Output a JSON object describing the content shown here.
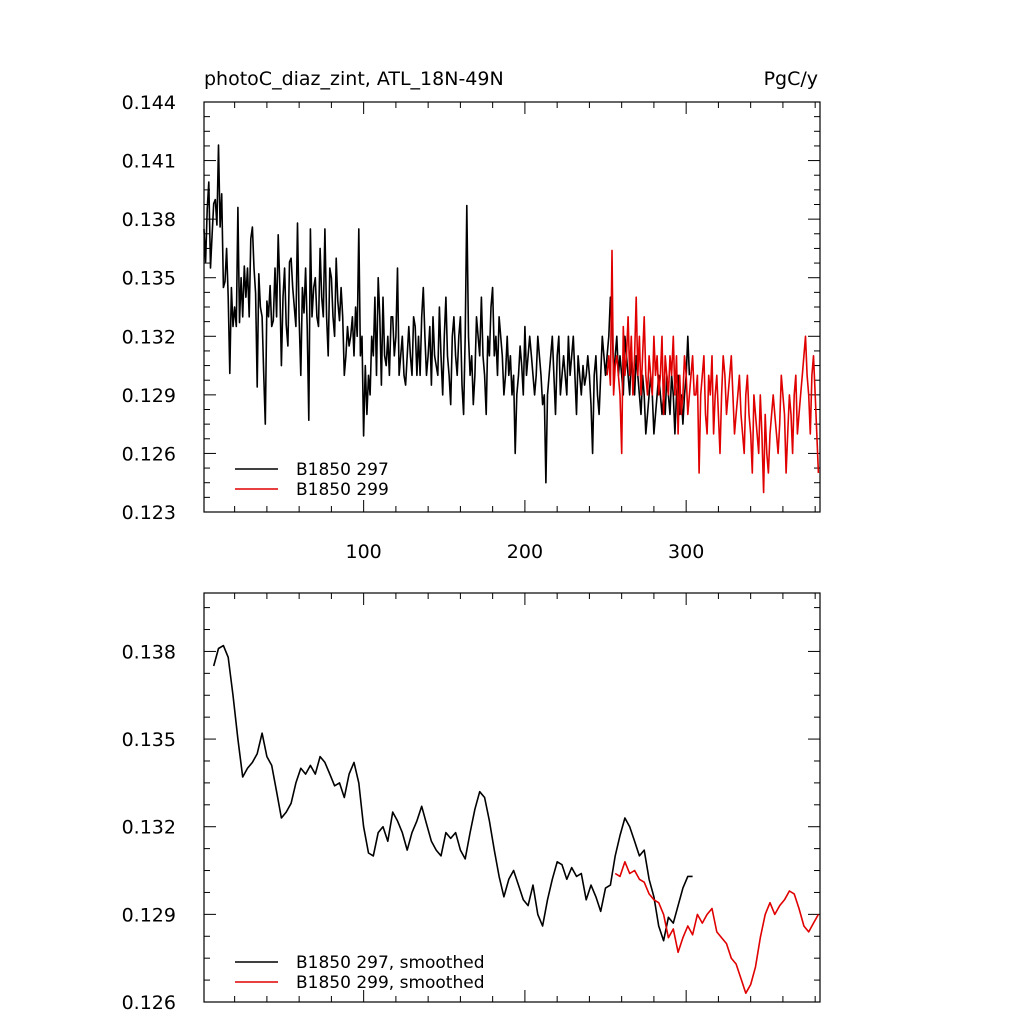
{
  "chart_data": [
    {
      "type": "line",
      "title": "photoC_diaz_zint, ATL_18N-49N",
      "units": "PgC/y",
      "xlabel": "",
      "ylabel": "",
      "xlim": [
        1,
        383
      ],
      "ylim": [
        0.123,
        0.144
      ],
      "x_ticks": [
        100,
        200,
        300
      ],
      "x_tick_labels": [
        "100",
        "200",
        "300"
      ],
      "y_ticks": [
        0.123,
        0.126,
        0.129,
        0.132,
        0.135,
        0.138,
        0.141,
        0.144
      ],
      "y_tick_labels": [
        "0.123",
        "0.126",
        "0.129",
        "0.132",
        "0.135",
        "0.138",
        "0.141",
        "0.144"
      ],
      "legend": "bottom-left",
      "series": [
        {
          "name": "B1850 297",
          "color": "#000000",
          "x_start": 1,
          "values": [
            0.1375,
            0.1358,
            0.1385,
            0.1399,
            0.1355,
            0.1372,
            0.1388,
            0.139,
            0.1377,
            0.1418,
            0.1376,
            0.1393,
            0.1345,
            0.1348,
            0.1365,
            0.134,
            0.1301,
            0.1345,
            0.1325,
            0.1335,
            0.1325,
            0.1386,
            0.1327,
            0.135,
            0.133,
            0.1356,
            0.134,
            0.1355,
            0.133,
            0.137,
            0.1376,
            0.1355,
            0.1342,
            0.1294,
            0.1352,
            0.1335,
            0.133,
            0.1301,
            0.1275,
            0.1338,
            0.133,
            0.1346,
            0.1325,
            0.1328,
            0.1355,
            0.133,
            0.1372,
            0.1346,
            0.1305,
            0.134,
            0.1355,
            0.1326,
            0.1315,
            0.1358,
            0.136,
            0.1345,
            0.1335,
            0.1325,
            0.1378,
            0.133,
            0.13,
            0.1345,
            0.1332,
            0.1355,
            0.1325,
            0.1277,
            0.1375,
            0.133,
            0.1345,
            0.135,
            0.133,
            0.1325,
            0.1365,
            0.134,
            0.133,
            0.1375,
            0.133,
            0.131,
            0.1355,
            0.135,
            0.133,
            0.132,
            0.136,
            0.1338,
            0.1328,
            0.1345,
            0.133,
            0.13,
            0.131,
            0.1325,
            0.1315,
            0.132,
            0.133,
            0.131,
            0.1335,
            0.132,
            0.1375,
            0.131,
            0.132,
            0.1269,
            0.1305,
            0.128,
            0.13,
            0.129,
            0.132,
            0.131,
            0.134,
            0.13,
            0.135,
            0.133,
            0.1295,
            0.134,
            0.131,
            0.1305,
            0.132,
            0.13,
            0.133,
            0.133,
            0.131,
            0.132,
            0.1355,
            0.13,
            0.131,
            0.132,
            0.13,
            0.1295,
            0.131,
            0.1325,
            0.131,
            0.13,
            0.133,
            0.1325,
            0.13,
            0.132,
            0.13,
            0.133,
            0.1345,
            0.132,
            0.13,
            0.131,
            0.1325,
            0.1295,
            0.133,
            0.131,
            0.1305,
            0.13,
            0.1335,
            0.131,
            0.129,
            0.132,
            0.134,
            0.131,
            0.13,
            0.1285,
            0.132,
            0.133,
            0.131,
            0.13,
            0.132,
            0.133,
            0.1295,
            0.128,
            0.132,
            0.1387,
            0.132,
            0.13,
            0.131,
            0.1285,
            0.13,
            0.133,
            0.132,
            0.131,
            0.134,
            0.131,
            0.13,
            0.128,
            0.132,
            0.131,
            0.1335,
            0.1345,
            0.131,
            0.132,
            0.13,
            0.133,
            0.132,
            0.131,
            0.129,
            0.13,
            0.132,
            0.13,
            0.131,
            0.129,
            0.13,
            0.126,
            0.129,
            0.13,
            0.1315,
            0.1305,
            0.129,
            0.1325,
            0.13,
            0.131,
            0.132,
            0.131,
            0.13,
            0.129,
            0.13,
            0.132,
            0.131,
            0.13,
            0.1285,
            0.129,
            0.1245,
            0.129,
            0.13,
            0.131,
            0.132,
            0.13,
            0.128,
            0.131,
            0.132,
            0.129,
            0.13,
            0.131,
            0.13,
            0.129,
            0.132,
            0.13,
            0.131,
            0.132,
            0.13,
            0.128,
            0.131,
            0.13,
            0.129,
            0.1305,
            0.1295,
            0.13,
            0.131,
            0.13,
            0.1285,
            0.126,
            0.13,
            0.131,
            0.129,
            0.128,
            0.13,
            0.132,
            0.131,
            0.13,
            0.131,
            0.132,
            0.134,
            0.133,
            0.13,
            0.131,
            0.132,
            0.13,
            0.131,
            0.13,
            0.129,
            0.132,
            0.131,
            0.13,
            0.129,
            0.131,
            0.13,
            0.129,
            0.131,
            0.13,
            0.129,
            0.128,
            0.13,
            0.129,
            0.127,
            0.128,
            0.129,
            0.13,
            0.129,
            0.127,
            0.128,
            0.129,
            0.13,
            0.129,
            0.128,
            0.129,
            0.128,
            0.13,
            0.129,
            0.128,
            0.13,
            0.129,
            0.127,
            0.129,
            0.13,
            0.128,
            0.129,
            0.1275,
            0.129,
            0.13,
            0.132,
            0.13
          ]
        },
        {
          "name": "B1850 299",
          "color": "#e00000",
          "x_start": 251,
          "values": [
            0.13,
            0.131,
            0.1295,
            0.1364,
            0.129,
            0.1305,
            0.131,
            0.13,
            0.129,
            0.126,
            0.1325,
            0.13,
            0.131,
            0.133,
            0.13,
            0.132,
            0.129,
            0.131,
            0.134,
            0.13,
            0.132,
            0.129,
            0.131,
            0.133,
            0.13,
            0.129,
            0.131,
            0.13,
            0.129,
            0.132,
            0.13,
            0.131,
            0.129,
            0.13,
            0.132,
            0.128,
            0.131,
            0.13,
            0.129,
            0.131,
            0.13,
            0.132,
            0.129,
            0.131,
            0.127,
            0.13,
            0.128,
            0.129,
            0.131,
            0.13,
            0.128,
            0.129,
            0.13,
            0.131,
            0.129,
            0.129,
            0.13,
            0.125,
            0.129,
            0.13,
            0.131,
            0.128,
            0.127,
            0.13,
            0.129,
            0.131,
            0.127,
            0.129,
            0.13,
            0.128,
            0.126,
            0.129,
            0.131,
            0.13,
            0.128,
            0.129,
            0.13,
            0.131,
            0.129,
            0.127,
            0.128,
            0.129,
            0.13,
            0.128,
            0.127,
            0.126,
            0.129,
            0.13,
            0.128,
            0.127,
            0.125,
            0.129,
            0.128,
            0.127,
            0.126,
            0.129,
            0.127,
            0.124,
            0.128,
            0.126,
            0.125,
            0.127,
            0.128,
            0.129,
            0.128,
            0.127,
            0.126,
            0.1275,
            0.13,
            0.129,
            0.128,
            0.125,
            0.127,
            0.129,
            0.128,
            0.126,
            0.129,
            0.13,
            0.127,
            0.128,
            0.129,
            0.13,
            0.131,
            0.132,
            0.13,
            0.129,
            0.127,
            0.13,
            0.131,
            0.129,
            0.127,
            0.125
          ]
        }
      ]
    },
    {
      "type": "line",
      "title": "",
      "xlabel": "",
      "ylabel": "",
      "xlim": [
        1,
        383
      ],
      "ylim": [
        0.126,
        0.14
      ],
      "x_ticks": [
        100,
        200,
        300
      ],
      "x_tick_labels": [],
      "y_ticks": [
        0.126,
        0.129,
        0.132,
        0.135,
        0.138
      ],
      "y_tick_labels": [
        "0.126",
        "0.129",
        "0.132",
        "0.135",
        "0.138"
      ],
      "legend": "bottom-left",
      "series": [
        {
          "name": "B1850 297, smoothed",
          "color": "#000000",
          "x": [
            7,
            10,
            13,
            16,
            19,
            22,
            25,
            28,
            31,
            34,
            37,
            40,
            43,
            46,
            49,
            52,
            55,
            58,
            61,
            64,
            67,
            70,
            73,
            76,
            79,
            82,
            85,
            88,
            91,
            94,
            97,
            100,
            103,
            106,
            109,
            112,
            115,
            118,
            121,
            124,
            127,
            130,
            133,
            136,
            139,
            142,
            145,
            148,
            151,
            154,
            157,
            160,
            163,
            166,
            169,
            172,
            175,
            178,
            181,
            184,
            187,
            190,
            193,
            196,
            199,
            202,
            205,
            208,
            211,
            214,
            217,
            220,
            223,
            226,
            229,
            232,
            235,
            238,
            241,
            244,
            247,
            250,
            253,
            256,
            259,
            262,
            265,
            268,
            271,
            274,
            277,
            280,
            283,
            286,
            289,
            292,
            295,
            298,
            301,
            304
          ],
          "values": [
            0.1375,
            0.1381,
            0.1382,
            0.1378,
            0.1365,
            0.135,
            0.1337,
            0.134,
            0.1342,
            0.1345,
            0.1352,
            0.1344,
            0.1341,
            0.1332,
            0.1323,
            0.1325,
            0.1328,
            0.1335,
            0.134,
            0.1338,
            0.1341,
            0.1338,
            0.1344,
            0.1342,
            0.1338,
            0.1334,
            0.1335,
            0.133,
            0.1338,
            0.1342,
            0.1335,
            0.132,
            0.1311,
            0.131,
            0.1318,
            0.132,
            0.1315,
            0.1325,
            0.1322,
            0.1318,
            0.1312,
            0.1318,
            0.1322,
            0.1327,
            0.1321,
            0.1315,
            0.1312,
            0.131,
            0.1318,
            0.1316,
            0.1318,
            0.1312,
            0.1309,
            0.1318,
            0.1326,
            0.1332,
            0.133,
            0.1322,
            0.1312,
            0.1303,
            0.1296,
            0.1302,
            0.1305,
            0.13,
            0.1295,
            0.1293,
            0.13,
            0.129,
            0.1286,
            0.1295,
            0.1302,
            0.1308,
            0.1307,
            0.1302,
            0.1306,
            0.1303,
            0.1304,
            0.1295,
            0.13,
            0.1296,
            0.1291,
            0.1299,
            0.13,
            0.131,
            0.1317,
            0.1323,
            0.132,
            0.1315,
            0.131,
            0.1312,
            0.1302,
            0.1296,
            0.1286,
            0.1281,
            0.1289,
            0.1287,
            0.1293,
            0.1299,
            0.1303,
            0.1303
          ]
        },
        {
          "name": "B1850 299, smoothed",
          "color": "#e00000",
          "x": [
            256,
            259,
            262,
            265,
            268,
            271,
            274,
            277,
            280,
            283,
            286,
            289,
            292,
            295,
            298,
            301,
            304,
            307,
            310,
            313,
            316,
            319,
            322,
            325,
            328,
            331,
            334,
            337,
            340,
            343,
            346,
            349,
            352,
            355,
            358,
            361,
            364,
            367,
            370,
            373,
            376,
            379,
            382
          ],
          "values": [
            0.1304,
            0.1303,
            0.1308,
            0.1304,
            0.1305,
            0.1302,
            0.1301,
            0.1297,
            0.1295,
            0.1294,
            0.129,
            0.1282,
            0.1285,
            0.1277,
            0.1282,
            0.1286,
            0.1283,
            0.129,
            0.1287,
            0.129,
            0.1292,
            0.1284,
            0.1282,
            0.128,
            0.1275,
            0.1273,
            0.1268,
            0.1263,
            0.1266,
            0.1272,
            0.1282,
            0.129,
            0.1294,
            0.129,
            0.1293,
            0.1295,
            0.1298,
            0.1297,
            0.1292,
            0.1286,
            0.1284,
            0.1287,
            0.129
          ]
        }
      ]
    }
  ]
}
